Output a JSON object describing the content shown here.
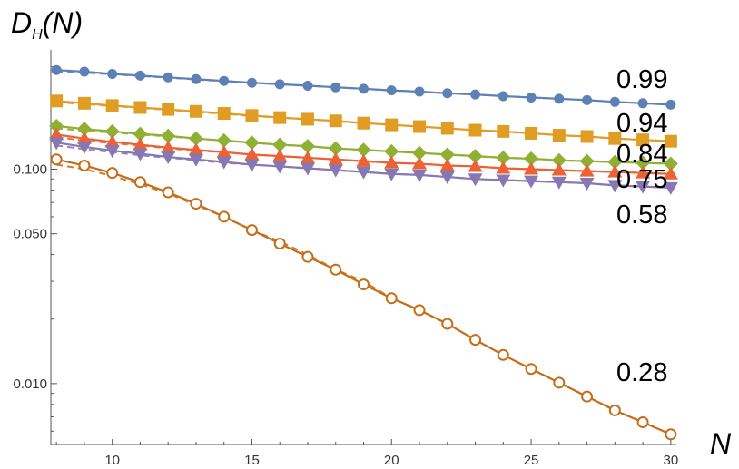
{
  "chart_data": {
    "type": "line",
    "title": "",
    "ylabel": {
      "main": "D",
      "sub": "H",
      "suffix": "(N)"
    },
    "xlabel": "N",
    "yscale": "log",
    "xlim": [
      7.8,
      30.2
    ],
    "ylim": [
      0.0052,
      0.36
    ],
    "xticks": [
      {
        "value": 10,
        "label": "10"
      },
      {
        "value": 15,
        "label": "15"
      },
      {
        "value": 20,
        "label": "20"
      },
      {
        "value": 25,
        "label": "25"
      },
      {
        "value": 30,
        "label": "30"
      }
    ],
    "yticks": [
      {
        "value": 0.1,
        "label": "0.100"
      },
      {
        "value": 0.05,
        "label": "0.050"
      },
      {
        "value": 0.01,
        "label": "0.010"
      }
    ],
    "x": [
      8,
      9,
      10,
      11,
      12,
      13,
      14,
      15,
      16,
      17,
      18,
      19,
      20,
      21,
      22,
      23,
      24,
      25,
      26,
      27,
      28,
      29,
      30
    ],
    "series": [
      {
        "label": "0.99",
        "color": "#5E81B5",
        "marker": "circle",
        "values": [
          0.29,
          0.285,
          0.278,
          0.273,
          0.268,
          0.263,
          0.258,
          0.253,
          0.249,
          0.245,
          0.241,
          0.237,
          0.233,
          0.23,
          0.226,
          0.223,
          0.219,
          0.216,
          0.213,
          0.21,
          0.206,
          0.203,
          0.2
        ],
        "dashed": [
          0.286,
          0.282,
          0.277,
          0.272,
          0.267,
          0.262,
          0.257,
          0.253,
          0.249,
          0.245,
          0.241,
          0.237,
          0.233,
          0.23,
          0.226,
          0.223,
          0.219,
          0.216,
          0.213,
          0.21,
          0.206,
          0.203,
          0.2
        ]
      },
      {
        "label": "0.94",
        "color": "#E19C24",
        "marker": "square",
        "values": [
          0.208,
          0.203,
          0.198,
          0.194,
          0.19,
          0.186,
          0.182,
          0.178,
          0.174,
          0.171,
          0.168,
          0.164,
          0.161,
          0.158,
          0.155,
          0.152,
          0.15,
          0.147,
          0.144,
          0.142,
          0.139,
          0.137,
          0.135
        ],
        "dashed": [
          0.205,
          0.201,
          0.197,
          0.193,
          0.189,
          0.185,
          0.181,
          0.177,
          0.174,
          0.171,
          0.167,
          0.164,
          0.161,
          0.158,
          0.155,
          0.152,
          0.15,
          0.147,
          0.144,
          0.142,
          0.139,
          0.137,
          0.135
        ]
      },
      {
        "label": "0.84",
        "color": "#8FB032",
        "marker": "diamond",
        "values": [
          0.159,
          0.154,
          0.15,
          0.146,
          0.143,
          0.139,
          0.136,
          0.133,
          0.13,
          0.128,
          0.125,
          0.123,
          0.121,
          0.119,
          0.117,
          0.115,
          0.113,
          0.112,
          0.11,
          0.109,
          0.108,
          0.107,
          0.106
        ],
        "dashed": [
          0.155,
          0.151,
          0.148,
          0.145,
          0.142,
          0.139,
          0.136,
          0.133,
          0.13,
          0.128,
          0.125,
          0.123,
          0.121,
          0.119,
          0.117,
          0.115,
          0.113,
          0.112,
          0.11,
          0.109,
          0.108,
          0.107,
          0.106
        ]
      },
      {
        "label": "0.75",
        "color": "#EB6235",
        "marker": "triangle-up",
        "values": [
          0.145,
          0.139,
          0.134,
          0.13,
          0.126,
          0.123,
          0.12,
          0.117,
          0.115,
          0.113,
          0.111,
          0.109,
          0.107,
          0.106,
          0.104,
          0.103,
          0.101,
          0.1,
          0.099,
          0.098,
          0.097,
          0.096,
          0.095
        ],
        "dashed": [
          0.141,
          0.136,
          0.132,
          0.129,
          0.125,
          0.122,
          0.12,
          0.117,
          0.115,
          0.113,
          0.111,
          0.109,
          0.107,
          0.106,
          0.104,
          0.103,
          0.101,
          0.1,
          0.099,
          0.098,
          0.097,
          0.096,
          0.095
        ]
      },
      {
        "label": "0.58",
        "color": "#8778B3",
        "marker": "triangle-down",
        "values": [
          0.133,
          0.127,
          0.122,
          0.118,
          0.114,
          0.111,
          0.108,
          0.105,
          0.103,
          0.101,
          0.099,
          0.097,
          0.095,
          0.094,
          0.092,
          0.09,
          0.089,
          0.088,
          0.087,
          0.086,
          0.084,
          0.083,
          0.082
        ],
        "dashed": [
          0.129,
          0.124,
          0.12,
          0.116,
          0.113,
          0.11,
          0.107,
          0.105,
          0.103,
          0.101,
          0.099,
          0.097,
          0.095,
          0.094,
          0.092,
          0.09,
          0.089,
          0.088,
          0.087,
          0.086,
          0.084,
          0.083,
          0.082
        ]
      },
      {
        "label": "0.28",
        "color": "#C56E1A",
        "marker": "open-circle",
        "values": [
          0.111,
          0.104,
          0.096,
          0.087,
          0.078,
          0.069,
          0.06,
          0.052,
          0.045,
          0.039,
          0.034,
          0.029,
          0.025,
          0.022,
          0.019,
          0.016,
          0.0136,
          0.0117,
          0.0101,
          0.0087,
          0.0075,
          0.0066,
          0.0058
        ],
        "dashed": [
          0.105,
          0.1,
          0.093,
          0.085,
          0.077,
          0.068,
          0.06,
          0.052,
          0.046,
          0.04,
          0.034,
          0.03,
          0.025,
          0.022,
          0.019,
          0.016,
          0.0136,
          0.0117,
          0.0101,
          0.0087,
          0.0075,
          0.0066,
          0.0058
        ]
      }
    ]
  }
}
